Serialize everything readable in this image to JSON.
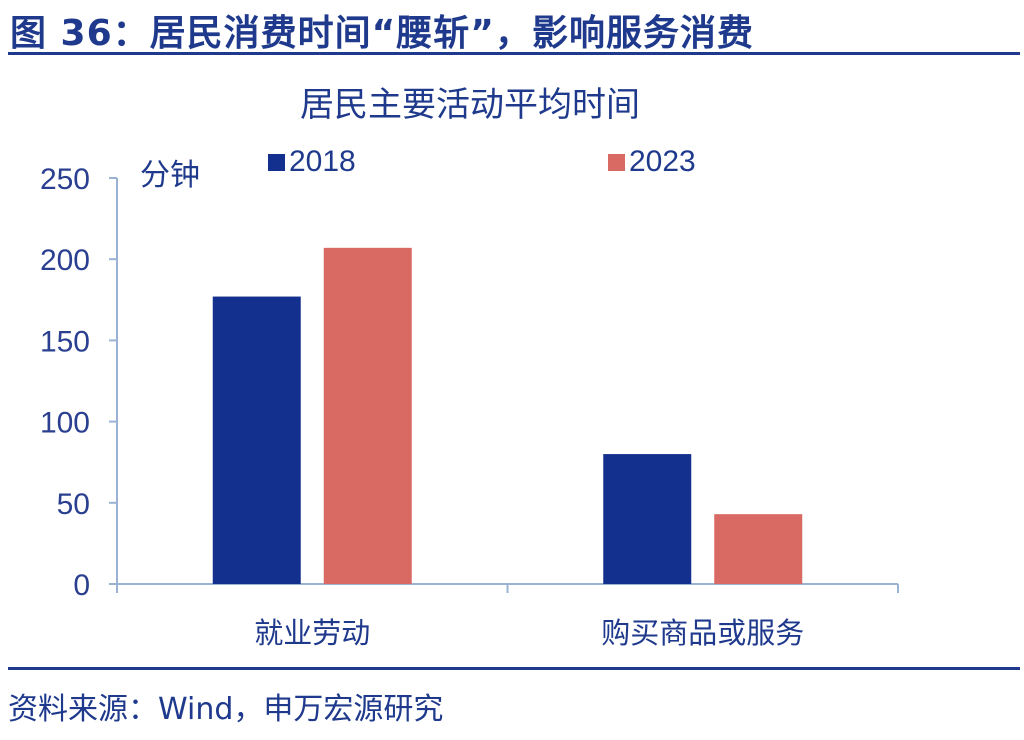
{
  "header": {
    "figure_title": "图 36：居民消费时间“腰斩”，影响服务消费"
  },
  "footer": {
    "source": "资料来源：Wind，申万宏源研究"
  },
  "chart_data": {
    "type": "bar",
    "title": "居民主要活动平均时间",
    "ylabel": "分钟",
    "categories": [
      "就业劳动",
      "购买商品或服务"
    ],
    "series": [
      {
        "name": "2018",
        "values": [
          177,
          80
        ],
        "color": "#14308f"
      },
      {
        "name": "2023",
        "values": [
          207,
          43
        ],
        "color": "#d86a63"
      }
    ],
    "ylim": [
      0,
      250
    ],
    "yticks": [
      0,
      50,
      100,
      150,
      200,
      250
    ],
    "grid": false,
    "legend_position": "top"
  }
}
